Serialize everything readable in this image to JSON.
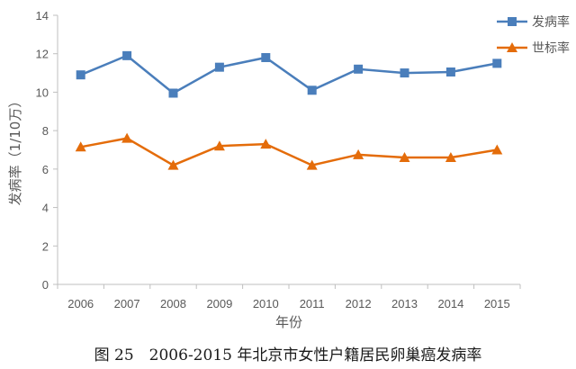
{
  "chart_data": {
    "type": "line",
    "x": [
      "2006",
      "2007",
      "2008",
      "2009",
      "2010",
      "2011",
      "2012",
      "2013",
      "2014",
      "2015"
    ],
    "series": [
      {
        "name": "发病率",
        "values": [
          10.9,
          11.9,
          9.95,
          11.3,
          11.8,
          10.1,
          11.2,
          11.0,
          11.05,
          11.5
        ],
        "color": "#4a7ebb",
        "marker": "square"
      },
      {
        "name": "世标率",
        "values": [
          7.15,
          7.6,
          6.2,
          7.2,
          7.3,
          6.2,
          6.75,
          6.6,
          6.6,
          7.0
        ],
        "color": "#e46c0a",
        "marker": "triangle"
      }
    ],
    "xlabel": "年份",
    "ylabel": "发病率（1/10万）",
    "ylim": [
      0,
      14
    ],
    "yticks": [
      0,
      2,
      4,
      6,
      8,
      10,
      12,
      14
    ],
    "grid": false,
    "legend": "top-right"
  },
  "caption": "图 25　2006-2015 年北京市女性户籍居民卵巢癌发病率"
}
